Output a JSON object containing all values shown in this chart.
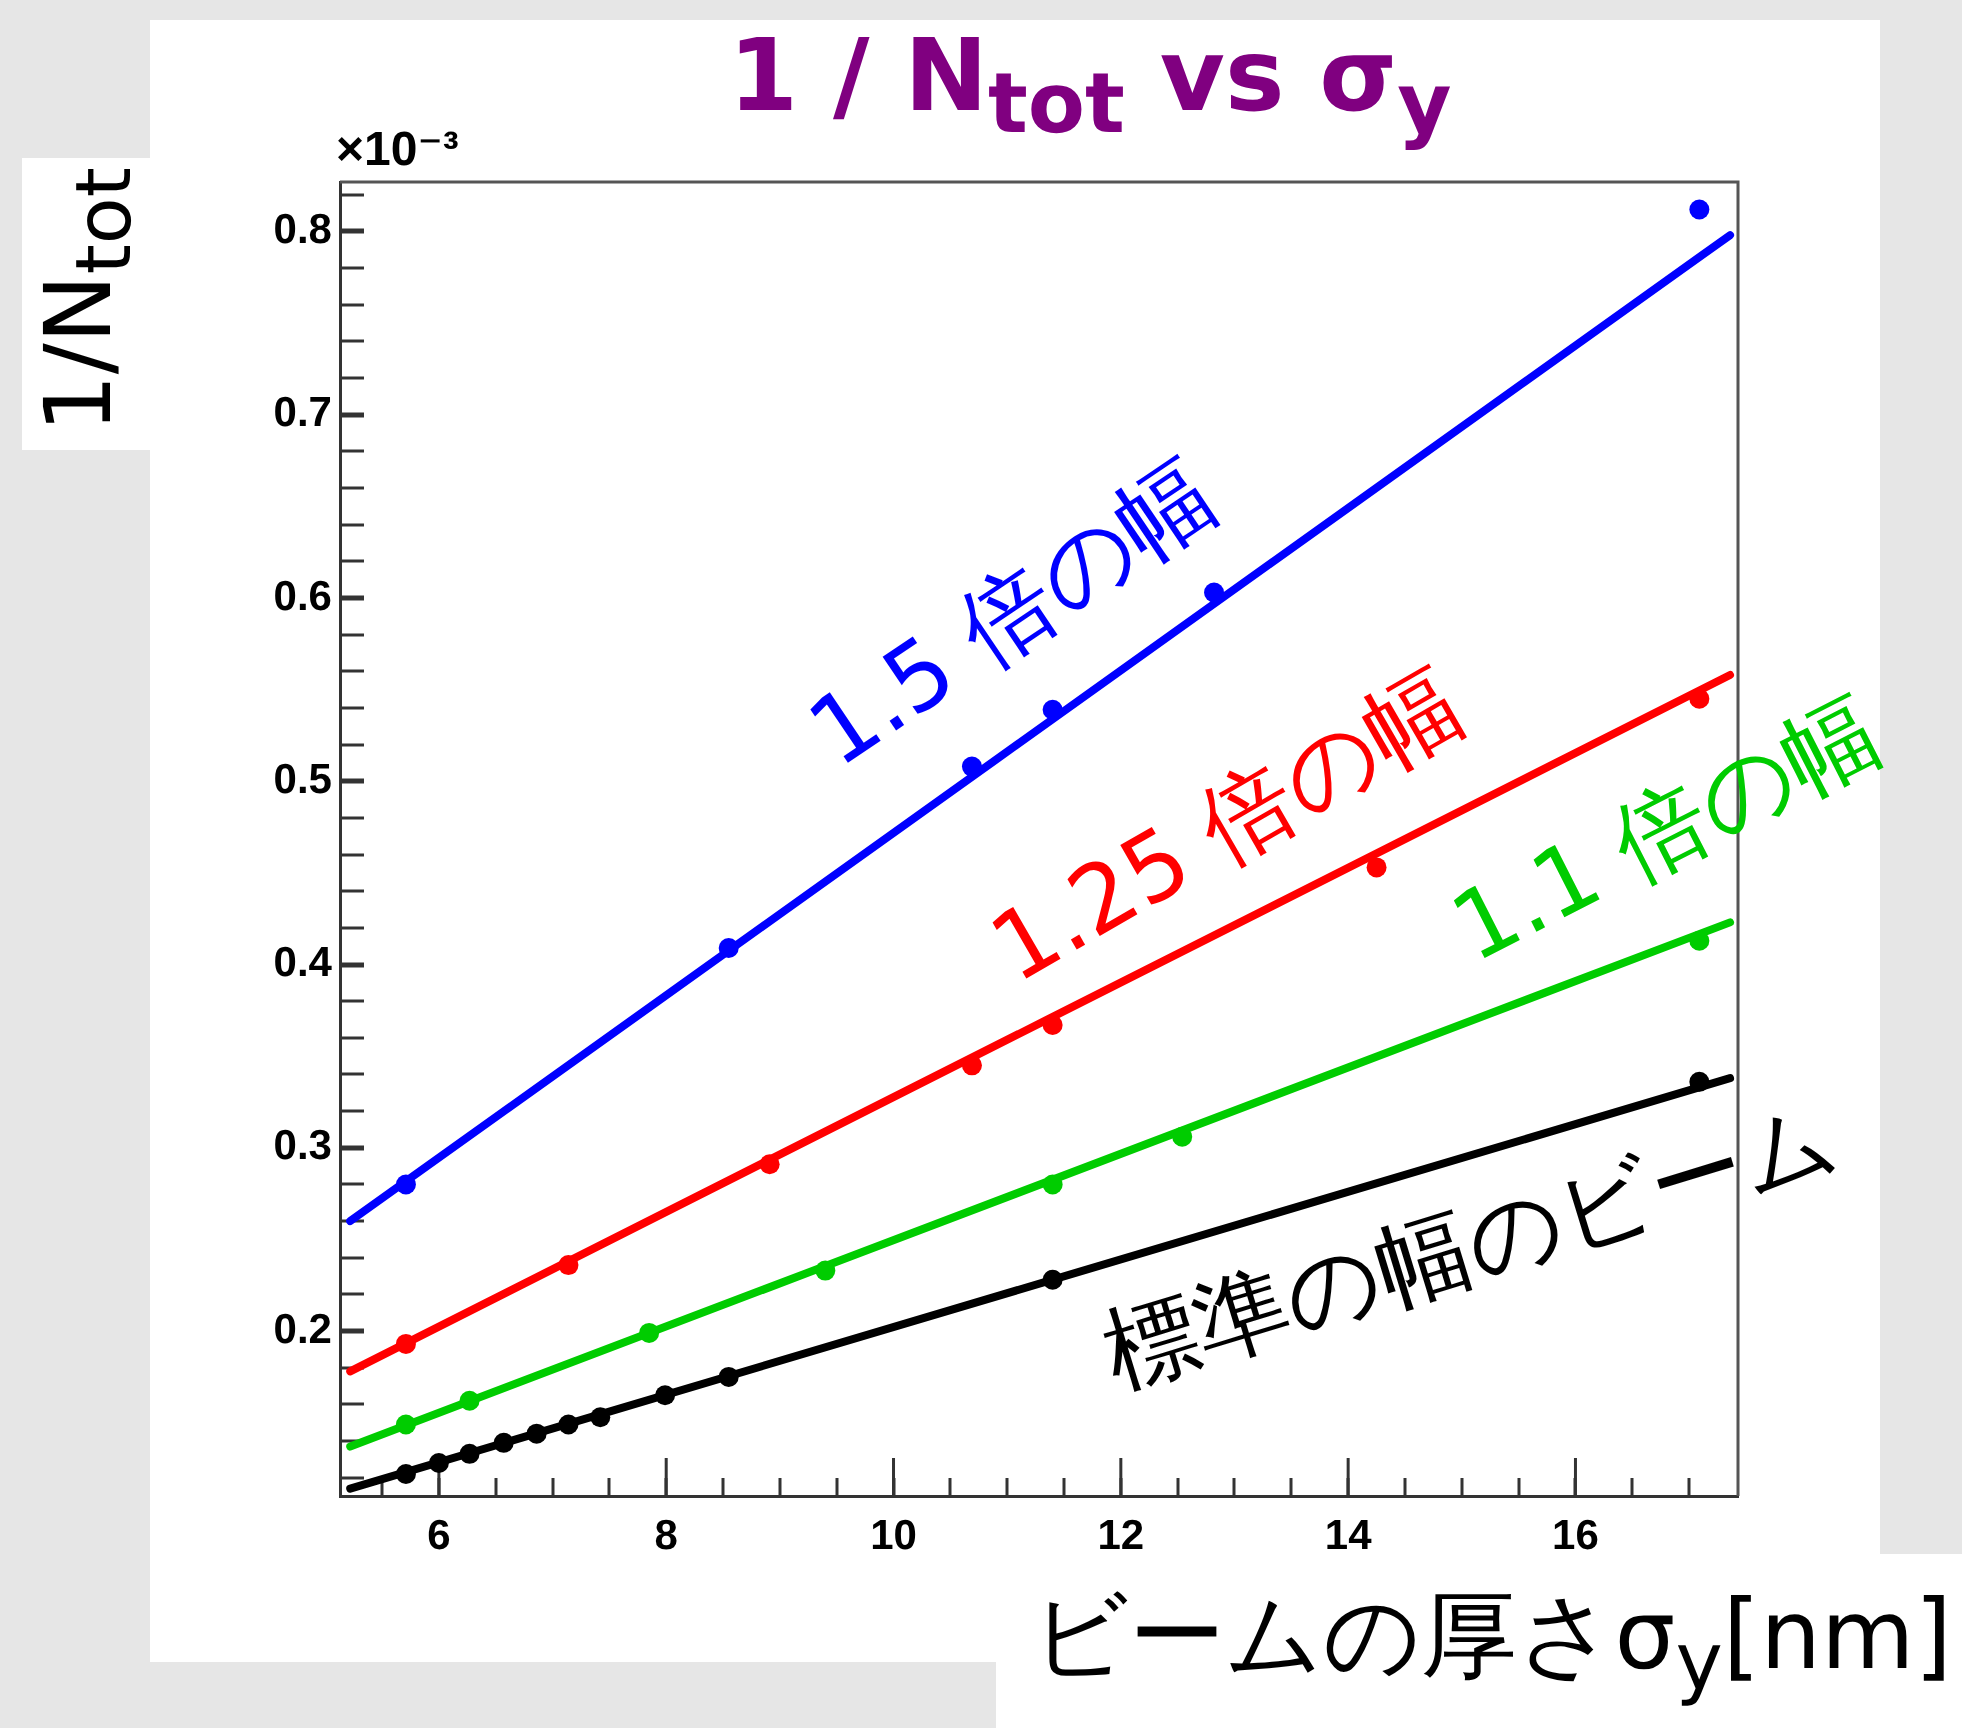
{
  "chart_data": {
    "type": "scatter",
    "title": "1 / N$_{tot}$ vs σ$_{y}$",
    "xlabel": "ビームの厚さσ$_{y}$[nm]",
    "ylabel": "1/N$_{tot}$",
    "annotations": [
      "×10⁻³"
    ],
    "marker": "circle",
    "xlim": [
      5.13,
      17.43
    ],
    "ylim": [
      0.11,
      0.827
    ],
    "xticks": [
      {
        "value": 5.5,
        "label": null
      },
      6,
      {
        "value": 6.5,
        "label": null
      },
      {
        "value": 7,
        "label": null
      },
      {
        "value": 7.5,
        "label": null
      },
      8,
      {
        "value": 8.5,
        "label": null
      },
      {
        "value": 9,
        "label": null
      },
      {
        "value": 9.5,
        "label": null
      },
      10,
      {
        "value": 10.5,
        "label": null
      },
      {
        "value": 11,
        "label": null
      },
      {
        "value": 11.5,
        "label": null
      },
      12,
      {
        "value": 12.5,
        "label": null
      },
      {
        "value": 13,
        "label": null
      },
      {
        "value": 13.5,
        "label": null
      },
      14,
      {
        "value": 14.5,
        "label": null
      },
      {
        "value": 15,
        "label": null
      },
      {
        "value": 15.5,
        "label": null
      },
      16,
      {
        "value": 16.5,
        "label": null
      },
      {
        "value": 17,
        "label": null
      }
    ],
    "yticks": [
      {
        "value": 0.12,
        "label": null
      },
      {
        "value": 0.14,
        "label": null
      },
      {
        "value": 0.16,
        "label": null
      },
      {
        "value": 0.18,
        "label": null
      },
      0.2,
      {
        "value": 0.22,
        "label": null
      },
      {
        "value": 0.24,
        "label": null
      },
      {
        "value": 0.26,
        "label": null
      },
      {
        "value": 0.28,
        "label": null
      },
      0.3,
      {
        "value": 0.32,
        "label": null
      },
      {
        "value": 0.34,
        "label": null
      },
      {
        "value": 0.36,
        "label": null
      },
      {
        "value": 0.38,
        "label": null
      },
      0.4,
      {
        "value": 0.42,
        "label": null
      },
      {
        "value": 0.44,
        "label": null
      },
      {
        "value": 0.46,
        "label": null
      },
      {
        "value": 0.48,
        "label": null
      },
      0.5,
      {
        "value": 0.52,
        "label": null
      },
      {
        "value": 0.54,
        "label": null
      },
      {
        "value": 0.56,
        "label": null
      },
      {
        "value": 0.58,
        "label": null
      },
      0.6,
      {
        "value": 0.62,
        "label": null
      },
      {
        "value": 0.64,
        "label": null
      },
      {
        "value": 0.66,
        "label": null
      },
      {
        "value": 0.68,
        "label": null
      },
      0.7,
      {
        "value": 0.72,
        "label": null
      },
      {
        "value": 0.74,
        "label": null
      },
      {
        "value": 0.76,
        "label": null
      },
      {
        "value": 0.78,
        "label": null
      },
      0.8,
      {
        "value": 0.82,
        "label": null
      }
    ],
    "series": [
      {
        "type": "scatter",
        "name": "1.5 倍の幅",
        "color": "#0000ff",
        "x": [
          5.71,
          8.55,
          10.69,
          11.4,
          12.82,
          17.09
        ],
        "values": [
          0.28,
          0.409,
          0.508,
          0.539,
          0.603,
          0.812
        ]
      },
      {
        "type": "line",
        "marker": "none",
        "color": "#0000ff",
        "x": [
          5.22,
          17.36
        ],
        "values": [
          0.26,
          0.798
        ]
      },
      {
        "type": "scatter",
        "name": "1.25 倍の幅",
        "color": "#ff0000",
        "x": [
          5.71,
          7.14,
          8.91,
          10.69,
          11.4,
          14.25,
          17.09
        ],
        "values": [
          0.193,
          0.236,
          0.291,
          0.345,
          0.367,
          0.453,
          0.545
        ]
      },
      {
        "type": "line",
        "marker": "none",
        "color": "#ff0000",
        "x": [
          5.22,
          17.36
        ],
        "values": [
          0.178,
          0.558
        ]
      },
      {
        "type": "scatter",
        "name": "1.1 倍の幅",
        "color": "#00cc00",
        "x": [
          5.71,
          6.27,
          7.85,
          9.4,
          11.4,
          12.54,
          17.09
        ],
        "values": [
          0.149,
          0.162,
          0.199,
          0.233,
          0.28,
          0.306,
          0.413
        ]
      },
      {
        "type": "line",
        "marker": "none",
        "color": "#00cc00",
        "x": [
          5.22,
          17.36
        ],
        "values": [
          0.137,
          0.423
        ]
      },
      {
        "type": "scatter",
        "name": "標準の幅のビーム",
        "color": "#000000",
        "x": [
          5.71,
          6,
          6.27,
          6.57,
          6.86,
          7.14,
          7.42,
          7.99,
          8.55,
          11.4,
          17.09
        ],
        "values": [
          0.122,
          0.128,
          0.133,
          0.139,
          0.144,
          0.149,
          0.153,
          0.165,
          0.175,
          0.228,
          0.336
        ]
      },
      {
        "type": "line",
        "marker": "none",
        "color": "#000000",
        "x": [
          5.22,
          17.36
        ],
        "values": [
          0.114,
          0.338
        ]
      }
    ]
  }
}
